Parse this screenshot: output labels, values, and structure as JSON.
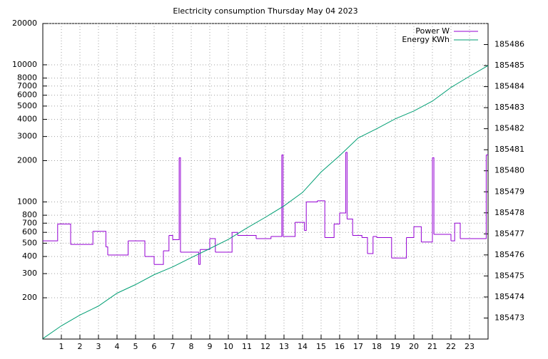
{
  "chart_data": {
    "type": "line",
    "title": "Electricity consumption Thursday May 04 2023",
    "xlim": [
      0,
      24
    ],
    "xticks": [
      1,
      2,
      3,
      4,
      5,
      6,
      7,
      8,
      9,
      10,
      11,
      12,
      13,
      14,
      15,
      16,
      17,
      18,
      19,
      20,
      21,
      22,
      23
    ],
    "ylim": [
      100,
      20000
    ],
    "ylog": true,
    "yticks": [
      200,
      300,
      400,
      500,
      600,
      700,
      800,
      1000,
      2000,
      3000,
      4000,
      5000,
      6000,
      7000,
      8000,
      10000,
      20000
    ],
    "y2lim": [
      185472,
      185487
    ],
    "y2ticks": [
      185473,
      185474,
      185475,
      185476,
      185477,
      185478,
      185479,
      185480,
      185481,
      185482,
      185483,
      185484,
      185485,
      185486
    ],
    "grid": true,
    "legend": "top-right",
    "series": [
      {
        "name": "Power W",
        "color": "#9400d3",
        "drawstyle": "steps-post",
        "x": [
          0,
          0.8,
          1.5,
          2.7,
          3.4,
          3.5,
          4.6,
          5.5,
          6.0,
          6.5,
          6.8,
          7.0,
          7.35,
          7.42,
          8.4,
          8.48,
          9.0,
          9.3,
          10.2,
          10.5,
          11.5,
          12.3,
          12.88,
          12.95,
          13.6,
          14.1,
          14.2,
          14.8,
          15.2,
          15.7,
          16.0,
          16.33,
          16.4,
          16.7,
          17.2,
          17.5,
          17.8,
          18.0,
          18.8,
          19.2,
          19.6,
          20.0,
          20.4,
          21.0,
          21.08,
          22.0,
          22.2,
          22.5,
          23.0,
          23.9
        ],
        "values": [
          520,
          690,
          490,
          610,
          470,
          410,
          520,
          400,
          350,
          440,
          570,
          530,
          2100,
          430,
          350,
          450,
          540,
          430,
          600,
          570,
          540,
          560,
          2200,
          560,
          710,
          620,
          1000,
          1020,
          550,
          690,
          830,
          2300,
          750,
          570,
          550,
          420,
          560,
          550,
          390,
          390,
          550,
          660,
          510,
          2100,
          580,
          520,
          700,
          540,
          540,
          2200
        ]
      },
      {
        "name": "Energy KWh",
        "color": "#009e73",
        "axis": "y2",
        "x": [
          0,
          1,
          2,
          3,
          4,
          5,
          6,
          7,
          8,
          9,
          10,
          11,
          12,
          13,
          14,
          15,
          16,
          17,
          18,
          19,
          20,
          21,
          22,
          23,
          24
        ],
        "values": [
          185472.02,
          185472.63,
          185473.14,
          185473.57,
          185474.18,
          185474.59,
          185475.06,
          185475.43,
          185475.87,
          185476.3,
          185476.74,
          185477.28,
          185477.79,
          185478.33,
          185478.97,
          185479.94,
          185480.72,
          185481.56,
          185482.0,
          185482.47,
          185482.84,
          185483.31,
          185483.96,
          185484.49,
          185485.0
        ]
      }
    ]
  }
}
